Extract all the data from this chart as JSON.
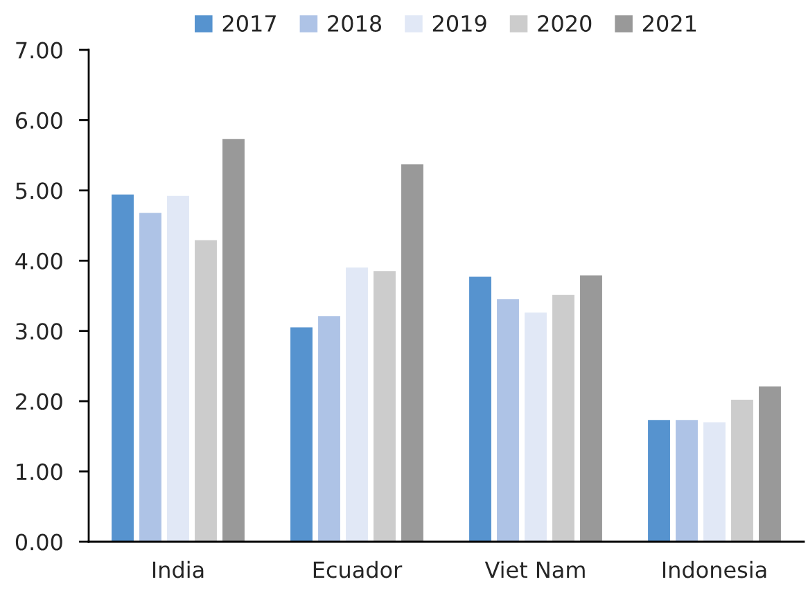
{
  "chart_data": {
    "type": "bar",
    "categories": [
      "India",
      "Ecuador",
      "Viet Nam",
      "Indonesia"
    ],
    "series": [
      {
        "name": "2017",
        "color": "#5693cf",
        "values": [
          4.95,
          3.06,
          3.78,
          1.74
        ]
      },
      {
        "name": "2018",
        "color": "#aec3e6",
        "values": [
          4.69,
          3.22,
          3.46,
          1.74
        ]
      },
      {
        "name": "2019",
        "color": "#e1e8f6",
        "values": [
          4.93,
          3.91,
          3.27,
          1.71
        ]
      },
      {
        "name": "2020",
        "color": "#cccccc",
        "values": [
          4.3,
          3.86,
          3.52,
          2.03
        ]
      },
      {
        "name": "2021",
        "color": "#999999",
        "values": [
          5.74,
          5.38,
          3.8,
          2.22
        ]
      }
    ],
    "ylim": [
      0,
      7
    ],
    "yticks": [
      {
        "value": 0,
        "label": "0.00"
      },
      {
        "value": 1,
        "label": "1.00"
      },
      {
        "value": 2,
        "label": "2.00"
      },
      {
        "value": 3,
        "label": "3.00"
      },
      {
        "value": 4,
        "label": "4.00"
      },
      {
        "value": 5,
        "label": "5.00"
      },
      {
        "value": 6,
        "label": "6.00"
      },
      {
        "value": 7,
        "label": "7.00"
      }
    ],
    "grid": false,
    "legend": "top"
  }
}
